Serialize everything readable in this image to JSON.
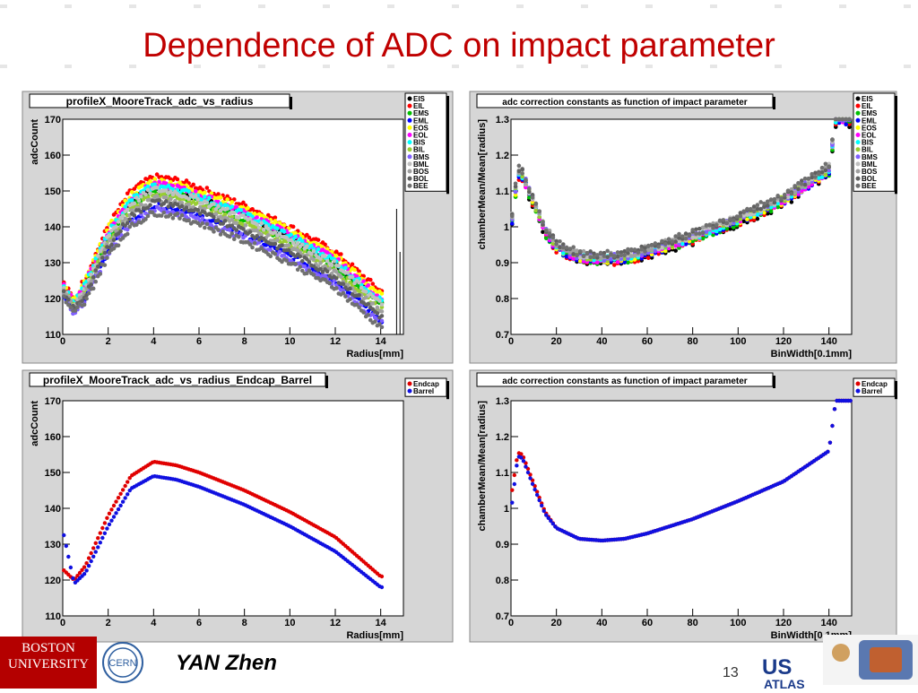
{
  "slide": {
    "title": "Dependence of ADC on impact parameter",
    "author": "YAN Zhen",
    "page_number": "13",
    "logos": [
      "BOSTON UNIVERSITY",
      "CERN",
      "US ATLAS"
    ]
  },
  "colors": {
    "title": "#c00000",
    "frame_bg": "#d6d6d6",
    "EIS": "#000000",
    "EIL": "#ff0000",
    "EMS": "#00c000",
    "EML": "#0000ff",
    "EOS": "#ffff00",
    "EOL": "#ff00ff",
    "BIS": "#00ffff",
    "BIL": "#9acd32",
    "BMS": "#8060ff",
    "BML": "#c0c0c0",
    "BOS": "#a0a0a0",
    "BOL": "#606060",
    "BEE": "#707070",
    "Endcap": "#e00000",
    "Barrel": "#1010e0"
  },
  "chart_data": [
    {
      "type": "scatter",
      "title": "profileX_MooreTrack_adc_vs_radius",
      "xlabel": "Radius[mm]",
      "ylabel": "adcCount",
      "xlim": [
        0,
        15
      ],
      "ylim": [
        110,
        170
      ],
      "xticks": [
        "0",
        "2",
        "4",
        "6",
        "8",
        "10",
        "12",
        "14"
      ],
      "yticks": [
        "110",
        "120",
        "130",
        "140",
        "150",
        "160",
        "170"
      ],
      "legend": [
        "EIS",
        "EIL",
        "EMS",
        "EML",
        "EOS",
        "EOL",
        "BIS",
        "BIL",
        "BMS",
        "BML",
        "BOS",
        "BOL",
        "BEE"
      ],
      "legend_position": "top-right",
      "series": [
        {
          "name": "EIS",
          "offset": 1
        },
        {
          "name": "EIL",
          "offset": 4
        },
        {
          "name": "EMS",
          "offset": 0
        },
        {
          "name": "EML",
          "offset": -4
        },
        {
          "name": "EOS",
          "offset": 3
        },
        {
          "name": "EOL",
          "offset": 2
        },
        {
          "name": "BIS",
          "offset": 1.5
        },
        {
          "name": "BIL",
          "offset": -1
        },
        {
          "name": "BMS",
          "offset": -5
        },
        {
          "name": "BML",
          "offset": 0.5
        },
        {
          "name": "BOS",
          "offset": -2
        },
        {
          "name": "BOL",
          "offset": -3
        },
        {
          "name": "BEE",
          "offset": -6
        }
      ]
    },
    {
      "type": "scatter",
      "title": "adc correction constants as function of impact parameter",
      "xlabel": "BinWidth[0.1mm]",
      "ylabel": "chamberMean/Mean[radius]",
      "xlim": [
        0,
        150
      ],
      "ylim": [
        0.7,
        1.3
      ],
      "xticks": [
        "0",
        "20",
        "40",
        "60",
        "80",
        "100",
        "120",
        "140"
      ],
      "yticks": [
        "0.7",
        "0.8",
        "0.9",
        "1",
        "1.1",
        "1.2",
        "1.3"
      ],
      "legend": [
        "EIS",
        "EIL",
        "EMS",
        "EML",
        "EOS",
        "EOL",
        "BIS",
        "BIL",
        "BMS",
        "BML",
        "BOS",
        "BOL",
        "BEE"
      ],
      "legend_position": "top-right"
    },
    {
      "type": "scatter",
      "title": "profileX_MooreTrack_adc_vs_radius_Endcap_Barrel",
      "xlabel": "Radius[mm]",
      "ylabel": "adcCount",
      "xlim": [
        0,
        15
      ],
      "ylim": [
        110,
        170
      ],
      "xticks": [
        "0",
        "2",
        "4",
        "6",
        "8",
        "10",
        "12",
        "14"
      ],
      "yticks": [
        "110",
        "120",
        "130",
        "140",
        "150",
        "160",
        "170"
      ],
      "legend": [
        "Endcap",
        "Barrel"
      ],
      "legend_position": "top-right",
      "series": [
        {
          "name": "Endcap",
          "points": [
            [
              0,
              123
            ],
            [
              0.5,
              120
            ],
            [
              1,
              124
            ],
            [
              2,
              138
            ],
            [
              3,
              149
            ],
            [
              4,
              153
            ],
            [
              5,
              152
            ],
            [
              6,
              150
            ],
            [
              8,
              145
            ],
            [
              10,
              139
            ],
            [
              12,
              132
            ],
            [
              14,
              121
            ]
          ]
        },
        {
          "name": "Barrel",
          "points": [
            [
              0,
              134
            ],
            [
              0.5,
              119
            ],
            [
              1,
              122
            ],
            [
              2,
              135
            ],
            [
              3,
              145.5
            ],
            [
              4,
              149
            ],
            [
              5,
              148
            ],
            [
              6,
              146
            ],
            [
              8,
              141
            ],
            [
              10,
              135
            ],
            [
              12,
              128
            ],
            [
              14,
              118
            ]
          ]
        }
      ]
    },
    {
      "type": "scatter",
      "title": "adc correction constants as function of impact parameter",
      "xlabel": "BinWidth[0.1mm]",
      "ylabel": "chamberMean/Mean[radius]",
      "xlim": [
        0,
        150
      ],
      "ylim": [
        0.7,
        1.3
      ],
      "xticks": [
        "0",
        "20",
        "40",
        "60",
        "80",
        "100",
        "120",
        "140"
      ],
      "yticks": [
        "0.7",
        "0.8",
        "0.9",
        "1",
        "1.1",
        "1.2",
        "1.3"
      ],
      "legend": [
        "Endcap",
        "Barrel"
      ],
      "legend_position": "top-right",
      "series": [
        {
          "name": "Endcap",
          "points": [
            [
              0,
              1.03
            ],
            [
              3,
              1.155
            ],
            [
              5,
              1.15
            ],
            [
              10,
              1.07
            ],
            [
              15,
              0.99
            ],
            [
              20,
              0.945
            ],
            [
              30,
              0.915
            ],
            [
              40,
              0.91
            ],
            [
              50,
              0.915
            ],
            [
              60,
              0.93
            ],
            [
              80,
              0.97
            ],
            [
              100,
              1.02
            ],
            [
              120,
              1.075
            ],
            [
              140,
              1.16
            ],
            [
              143,
              1.3
            ],
            [
              150,
              1.3
            ]
          ]
        },
        {
          "name": "Barrel",
          "points": [
            [
              0,
              0.99
            ],
            [
              3,
              1.145
            ],
            [
              5,
              1.14
            ],
            [
              10,
              1.06
            ],
            [
              15,
              0.985
            ],
            [
              20,
              0.945
            ],
            [
              30,
              0.915
            ],
            [
              40,
              0.91
            ],
            [
              50,
              0.915
            ],
            [
              60,
              0.93
            ],
            [
              80,
              0.97
            ],
            [
              100,
              1.02
            ],
            [
              120,
              1.075
            ],
            [
              140,
              1.16
            ],
            [
              143,
              1.3
            ],
            [
              150,
              1.3
            ]
          ]
        }
      ]
    }
  ]
}
